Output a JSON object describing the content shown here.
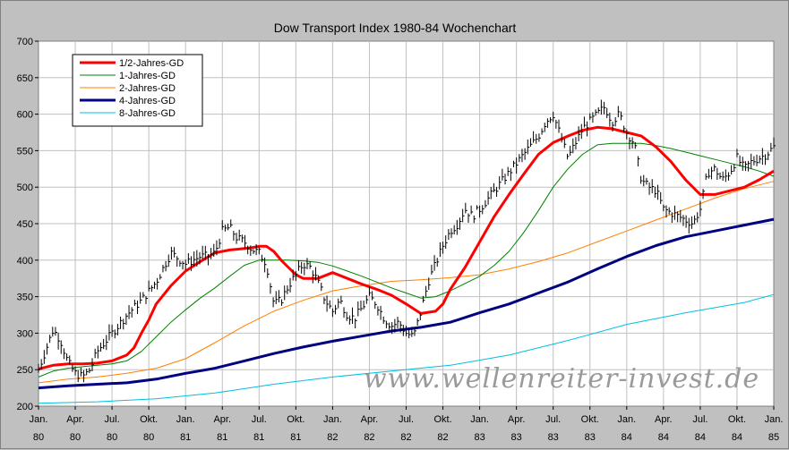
{
  "chart_data": {
    "type": "line",
    "title": "Dow Transport Index 1980-84 Wochenchart",
    "watermark": "www.wellenreiter-invest.de",
    "xlabel": "",
    "ylabel": "",
    "ylim": [
      200,
      700
    ],
    "yticks": [
      200,
      250,
      300,
      350,
      400,
      450,
      500,
      550,
      600,
      650,
      700
    ],
    "xlim": [
      1980.0,
      1985.0
    ],
    "xticks": [
      {
        "month": "Jan.",
        "year": "80",
        "x": 1980.0
      },
      {
        "month": "Apr.",
        "year": "80",
        "x": 1980.25
      },
      {
        "month": "Jul.",
        "year": "80",
        "x": 1980.5
      },
      {
        "month": "Okt.",
        "year": "80",
        "x": 1980.75
      },
      {
        "month": "Jan.",
        "year": "81",
        "x": 1981.0
      },
      {
        "month": "Apr.",
        "year": "81",
        "x": 1981.25
      },
      {
        "month": "Jul.",
        "year": "81",
        "x": 1981.5
      },
      {
        "month": "Okt.",
        "year": "81",
        "x": 1981.75
      },
      {
        "month": "Jan.",
        "year": "82",
        "x": 1982.0
      },
      {
        "month": "Apr.",
        "year": "82",
        "x": 1982.25
      },
      {
        "month": "Jul.",
        "year": "82",
        "x": 1982.5
      },
      {
        "month": "Okt.",
        "year": "82",
        "x": 1982.75
      },
      {
        "month": "Jan.",
        "year": "83",
        "x": 1983.0
      },
      {
        "month": "Apr.",
        "year": "83",
        "x": 1983.25
      },
      {
        "month": "Jul.",
        "year": "83",
        "x": 1983.5
      },
      {
        "month": "Okt.",
        "year": "83",
        "x": 1983.75
      },
      {
        "month": "Jan.",
        "year": "84",
        "x": 1984.0
      },
      {
        "month": "Apr.",
        "year": "84",
        "x": 1984.25
      },
      {
        "month": "Jul.",
        "year": "84",
        "x": 1984.5
      },
      {
        "month": "Okt.",
        "year": "84",
        "x": 1984.75
      },
      {
        "month": "Jan.",
        "year": "85",
        "x": 1985.0
      }
    ],
    "grid": true,
    "legend_position": "top-left",
    "price": {
      "name": "",
      "color": "#000000",
      "x": [
        1980.0,
        1980.1,
        1980.15,
        1980.2,
        1980.25,
        1980.3,
        1980.35,
        1980.4,
        1980.5,
        1980.6,
        1980.7,
        1980.8,
        1980.9,
        1981.0,
        1981.05,
        1981.1,
        1981.15,
        1981.2,
        1981.25,
        1981.3,
        1981.35,
        1981.4,
        1981.45,
        1981.5,
        1981.55,
        1981.6,
        1981.65,
        1981.7,
        1981.75,
        1981.8,
        1981.85,
        1981.9,
        1981.95,
        1982.0,
        1982.05,
        1982.1,
        1982.15,
        1982.2,
        1982.25,
        1982.3,
        1982.35,
        1982.4,
        1982.45,
        1982.5,
        1982.55,
        1982.6,
        1982.65,
        1982.7,
        1982.75,
        1982.8,
        1982.85,
        1982.9,
        1982.95,
        1983.0,
        1983.1,
        1983.2,
        1983.3,
        1983.4,
        1983.45,
        1983.5,
        1983.55,
        1983.6,
        1983.65,
        1983.7,
        1983.75,
        1983.8,
        1983.85,
        1983.9,
        1983.95,
        1984.0,
        1984.05,
        1984.1,
        1984.15,
        1984.2,
        1984.25,
        1984.3,
        1984.35,
        1984.4,
        1984.45,
        1984.5,
        1984.55,
        1984.6,
        1984.65,
        1984.7,
        1984.75,
        1984.8,
        1984.85,
        1984.9,
        1984.95,
        1985.0
      ],
      "y": [
        250,
        305,
        290,
        260,
        245,
        240,
        250,
        275,
        300,
        325,
        345,
        370,
        410,
        395,
        400,
        405,
        405,
        410,
        440,
        445,
        430,
        425,
        415,
        410,
        395,
        340,
        345,
        365,
        380,
        395,
        390,
        370,
        345,
        330,
        345,
        325,
        320,
        335,
        350,
        340,
        320,
        310,
        315,
        300,
        295,
        330,
        370,
        395,
        420,
        440,
        450,
        470,
        460,
        470,
        495,
        520,
        545,
        570,
        590,
        600,
        570,
        540,
        560,
        580,
        590,
        600,
        610,
        590,
        600,
        575,
        560,
        510,
        500,
        495,
        470,
        465,
        460,
        455,
        450,
        470,
        520,
        525,
        510,
        520,
        540,
        525,
        535,
        540,
        545,
        555
      ]
    },
    "series": [
      {
        "name": "1/2-Jahres-GD",
        "color": "#ff0000",
        "width": 3,
        "x": [
          1980.0,
          1980.1,
          1980.2,
          1980.3,
          1980.4,
          1980.5,
          1980.6,
          1980.65,
          1980.7,
          1980.75,
          1980.8,
          1980.9,
          1981.0,
          1981.1,
          1981.2,
          1981.3,
          1981.35,
          1981.45,
          1981.5,
          1981.55,
          1981.6,
          1981.65,
          1981.7,
          1981.75,
          1981.8,
          1981.9,
          1982.0,
          1982.1,
          1982.2,
          1982.3,
          1982.4,
          1982.5,
          1982.6,
          1982.7,
          1982.75,
          1982.8,
          1982.9,
          1983.0,
          1983.1,
          1983.2,
          1983.3,
          1983.4,
          1983.5,
          1983.6,
          1983.7,
          1983.8,
          1983.9,
          1984.0,
          1984.1,
          1984.2,
          1984.3,
          1984.4,
          1984.5,
          1984.6,
          1984.7,
          1984.8,
          1984.9,
          1985.0
        ],
        "y": [
          251,
          256,
          258,
          258,
          259,
          262,
          270,
          280,
          300,
          318,
          340,
          365,
          385,
          398,
          410,
          414,
          415,
          417,
          419,
          419,
          412,
          400,
          390,
          380,
          375,
          375,
          383,
          375,
          367,
          360,
          352,
          340,
          327,
          330,
          340,
          360,
          390,
          425,
          460,
          490,
          518,
          545,
          561,
          570,
          578,
          582,
          580,
          575,
          570,
          555,
          535,
          510,
          490,
          490,
          495,
          500,
          510,
          522
        ]
      },
      {
        "name": "1-Jahres-GD",
        "color": "#008000",
        "width": 1,
        "x": [
          1980.0,
          1980.1,
          1980.2,
          1980.3,
          1980.4,
          1980.5,
          1980.6,
          1980.7,
          1980.8,
          1980.9,
          1981.0,
          1981.1,
          1981.2,
          1981.3,
          1981.4,
          1981.5,
          1981.6,
          1981.7,
          1981.8,
          1981.9,
          1982.0,
          1982.1,
          1982.2,
          1982.3,
          1982.4,
          1982.5,
          1982.6,
          1982.7,
          1982.8,
          1982.9,
          1983.0,
          1983.1,
          1983.2,
          1983.3,
          1983.4,
          1983.5,
          1983.6,
          1983.7,
          1983.8,
          1983.9,
          1984.0,
          1984.1,
          1984.2,
          1984.3,
          1984.4,
          1984.5,
          1984.6,
          1984.7,
          1984.8,
          1984.9,
          1985.0
        ],
        "y": [
          240,
          248,
          252,
          254,
          256,
          258,
          262,
          275,
          295,
          315,
          332,
          348,
          362,
          378,
          393,
          400,
          400,
          400,
          399,
          397,
          392,
          385,
          378,
          370,
          362,
          355,
          348,
          350,
          358,
          368,
          378,
          393,
          412,
          438,
          468,
          500,
          525,
          545,
          558,
          560,
          560,
          560,
          557,
          553,
          548,
          543,
          538,
          533,
          528,
          522,
          515
        ]
      },
      {
        "name": "2-Jahres-GD",
        "color": "#ff8000",
        "width": 1,
        "x": [
          1980.0,
          1980.2,
          1980.4,
          1980.6,
          1980.8,
          1981.0,
          1981.2,
          1981.4,
          1981.6,
          1981.8,
          1982.0,
          1982.2,
          1982.4,
          1982.6,
          1982.8,
          1983.0,
          1983.2,
          1983.4,
          1983.6,
          1983.8,
          1984.0,
          1984.2,
          1984.4,
          1984.6,
          1984.8,
          1985.0
        ],
        "y": [
          232,
          237,
          240,
          245,
          252,
          265,
          287,
          310,
          330,
          345,
          358,
          365,
          371,
          373,
          376,
          380,
          388,
          398,
          410,
          425,
          440,
          455,
          470,
          485,
          498,
          508
        ]
      },
      {
        "name": "4-Jahres-GD",
        "color": "#000080",
        "width": 3,
        "x": [
          1980.0,
          1980.2,
          1980.4,
          1980.6,
          1980.8,
          1981.0,
          1981.2,
          1981.4,
          1981.6,
          1981.8,
          1982.0,
          1982.2,
          1982.4,
          1982.6,
          1982.8,
          1983.0,
          1983.2,
          1983.4,
          1983.6,
          1983.8,
          1984.0,
          1984.2,
          1984.4,
          1984.6,
          1984.8,
          1985.0
        ],
        "y": [
          225,
          228,
          230,
          232,
          237,
          245,
          252,
          262,
          272,
          281,
          289,
          296,
          303,
          308,
          315,
          328,
          340,
          355,
          370,
          388,
          405,
          420,
          432,
          440,
          448,
          456
        ]
      },
      {
        "name": "8-Jahres-GD",
        "color": "#00c0e0",
        "width": 1,
        "x": [
          1980.0,
          1980.4,
          1980.8,
          1981.2,
          1981.6,
          1982.0,
          1982.4,
          1982.8,
          1983.2,
          1983.6,
          1984.0,
          1984.4,
          1984.8,
          1985.0
        ],
        "y": [
          204,
          206,
          210,
          218,
          230,
          240,
          248,
          256,
          270,
          290,
          312,
          328,
          342,
          353
        ]
      }
    ]
  }
}
